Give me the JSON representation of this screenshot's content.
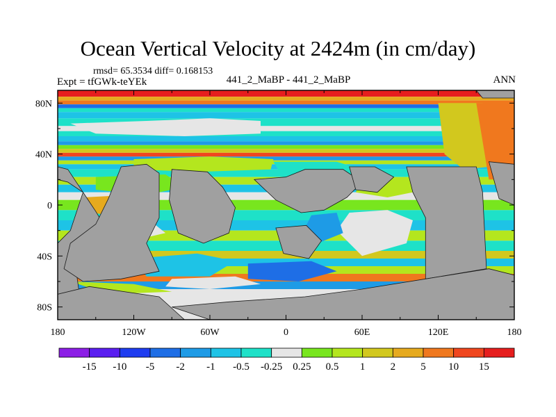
{
  "title": "Ocean Vertical Velocity at 2424m (in cm/day)",
  "stats": "rmsd= 65.3534 diff= 0.168153",
  "expt": "Expt = tfGWk-teYEk",
  "center_label": "441_2_MaBP - 441_2_MaBP",
  "season": "ANN",
  "map": {
    "projection": "cylindrical equidistant",
    "lon_range": [
      -180,
      180
    ],
    "lat_range": [
      -90,
      90
    ],
    "land_color": "#a0a0a0",
    "ocean_background": "#ffffff",
    "x_tick_labels": [
      {
        "lon": -180,
        "label": "180"
      },
      {
        "lon": -120,
        "label": "120W"
      },
      {
        "lon": -60,
        "label": "60W"
      },
      {
        "lon": 0,
        "label": "0"
      },
      {
        "lon": 60,
        "label": "60E"
      },
      {
        "lon": 120,
        "label": "120E"
      },
      {
        "lon": 180,
        "label": "180"
      }
    ],
    "y_tick_labels": [
      {
        "lat": 80,
        "label": "80N"
      },
      {
        "lat": 40,
        "label": "40N"
      },
      {
        "lat": 0,
        "label": "0"
      },
      {
        "lat": -40,
        "label": "40S"
      },
      {
        "lat": -80,
        "label": "80S"
      }
    ]
  },
  "colorbar": {
    "colors": [
      "#8c1ee6",
      "#5a1ef0",
      "#1e3cf0",
      "#1e6ee6",
      "#1e9be6",
      "#1ec3e6",
      "#1ee1c8",
      "#e6e6e6",
      "#78e61e",
      "#b4e61e",
      "#d2c81e",
      "#e6aa1e",
      "#f0781e",
      "#f0461e",
      "#e61e1e"
    ],
    "labels": [
      "-15",
      "-10",
      "-5",
      "-2",
      "-1",
      "-0.5",
      "-0.25",
      "0.25",
      "0.5",
      "1",
      "2",
      "5",
      "10",
      "15"
    ]
  }
}
